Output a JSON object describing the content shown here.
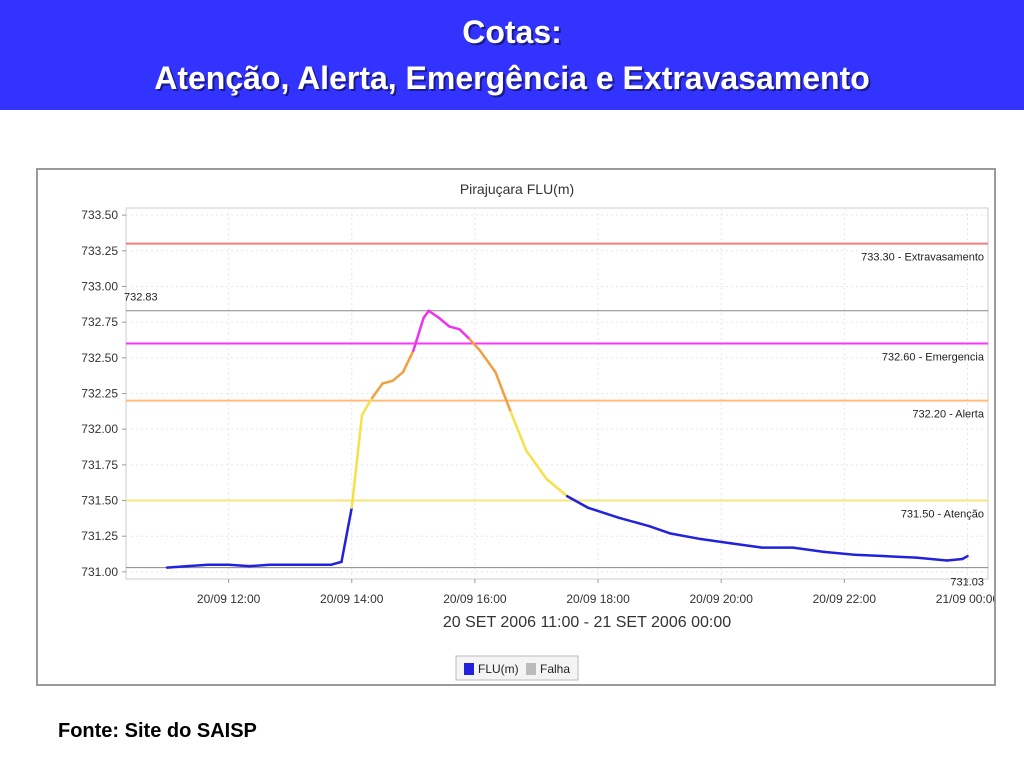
{
  "slide": {
    "title_line1": "Cotas:",
    "title_line2": "Atenção, Alerta, Emergência e Extravasamento",
    "source": "Fonte: Site do SAISP",
    "header_bg": "#3333ff"
  },
  "chart_data": {
    "type": "line",
    "title": "Pirajuçara FLU(m)",
    "xlabel": "20 SET 2006 11:00 - 21 SET 2006 00:00",
    "ylabel": "",
    "ylim": [
      730.95,
      733.55
    ],
    "yticks": [
      731.0,
      731.25,
      731.5,
      731.75,
      732.0,
      732.25,
      732.5,
      732.75,
      733.0,
      733.25,
      733.5
    ],
    "ytick_labels": [
      "731.00",
      "731.25",
      "731.50",
      "731.75",
      "732.00",
      "732.25",
      "732.50",
      "732.75",
      "733.00",
      "733.25",
      "733.50"
    ],
    "xlim": [
      "2006-09-20 10:20",
      "2006-09-21 00:20"
    ],
    "xticks": [
      "2006-09-20 12:00",
      "2006-09-20 14:00",
      "2006-09-20 16:00",
      "2006-09-20 18:00",
      "2006-09-20 20:00",
      "2006-09-20 22:00",
      "2006-09-21 00:00"
    ],
    "xtick_labels": [
      "20/09 12:00",
      "20/09 14:00",
      "20/09 16:00",
      "20/09 18:00",
      "20/09 20:00",
      "20/09 22:00",
      "21/09 00:00"
    ],
    "grid": true,
    "thresholds": [
      {
        "value": 733.3,
        "label": "733.30 - Extravasamento",
        "color": "#f08080"
      },
      {
        "value": 732.6,
        "label": "732.60 - Emergencia",
        "color": "#ff33ff"
      },
      {
        "value": 732.2,
        "label": "732.20 - Alerta",
        "color": "#ffbb77"
      },
      {
        "value": 731.5,
        "label": "731.50 - Atenção",
        "color": "#f5e67a"
      }
    ],
    "reference_lines": [
      {
        "value": 732.83,
        "label": "732.83",
        "color": "#888888"
      },
      {
        "value": 731.03,
        "label": "731.03",
        "color": "#888888"
      }
    ],
    "series": [
      {
        "name": "FLU(m)",
        "color": "#2222dd",
        "points": [
          [
            "2006-09-20 11:00",
            731.03
          ],
          [
            "2006-09-20 11:20",
            731.04
          ],
          [
            "2006-09-20 11:40",
            731.05
          ],
          [
            "2006-09-20 12:00",
            731.05
          ],
          [
            "2006-09-20 12:20",
            731.04
          ],
          [
            "2006-09-20 12:40",
            731.05
          ],
          [
            "2006-09-20 13:00",
            731.05
          ],
          [
            "2006-09-20 13:20",
            731.05
          ],
          [
            "2006-09-20 13:40",
            731.05
          ],
          [
            "2006-09-20 13:50",
            731.07
          ],
          [
            "2006-09-20 14:00",
            731.45
          ],
          [
            "2006-09-20 14:10",
            732.1
          ],
          [
            "2006-09-20 14:20",
            732.22
          ],
          [
            "2006-09-20 14:30",
            732.32
          ],
          [
            "2006-09-20 14:40",
            732.34
          ],
          [
            "2006-09-20 14:50",
            732.4
          ],
          [
            "2006-09-20 15:00",
            732.55
          ],
          [
            "2006-09-20 15:10",
            732.78
          ],
          [
            "2006-09-20 15:15",
            732.83
          ],
          [
            "2006-09-20 15:25",
            732.78
          ],
          [
            "2006-09-20 15:35",
            732.72
          ],
          [
            "2006-09-20 15:45",
            732.7
          ],
          [
            "2006-09-20 15:55",
            732.63
          ],
          [
            "2006-09-20 16:05",
            732.55
          ],
          [
            "2006-09-20 16:20",
            732.4
          ],
          [
            "2006-09-20 16:35",
            732.12
          ],
          [
            "2006-09-20 16:50",
            731.85
          ],
          [
            "2006-09-20 17:10",
            731.65
          ],
          [
            "2006-09-20 17:30",
            731.53
          ],
          [
            "2006-09-20 17:50",
            731.45
          ],
          [
            "2006-09-20 18:20",
            731.38
          ],
          [
            "2006-09-20 18:50",
            731.32
          ],
          [
            "2006-09-20 19:10",
            731.27
          ],
          [
            "2006-09-20 19:40",
            731.23
          ],
          [
            "2006-09-20 20:10",
            731.2
          ],
          [
            "2006-09-20 20:40",
            731.17
          ],
          [
            "2006-09-20 21:10",
            731.17
          ],
          [
            "2006-09-20 21:40",
            731.14
          ],
          [
            "2006-09-20 22:10",
            731.12
          ],
          [
            "2006-09-20 22:40",
            731.11
          ],
          [
            "2006-09-20 23:10",
            731.1
          ],
          [
            "2006-09-20 23:40",
            731.08
          ],
          [
            "2006-09-20 23:55",
            731.09
          ],
          [
            "2006-09-21 00:00",
            731.11
          ]
        ]
      }
    ],
    "legend": {
      "position": "bottom",
      "items": [
        {
          "label": "FLU(m)",
          "color": "#2222dd"
        },
        {
          "label": "Falha",
          "color": "#bbbbbb"
        }
      ]
    },
    "line_level_colors": {
      "below_attention": "#2222dd",
      "attention": "#f5e14a",
      "alert": "#f0a040",
      "emergency": "#ee33ee"
    }
  }
}
